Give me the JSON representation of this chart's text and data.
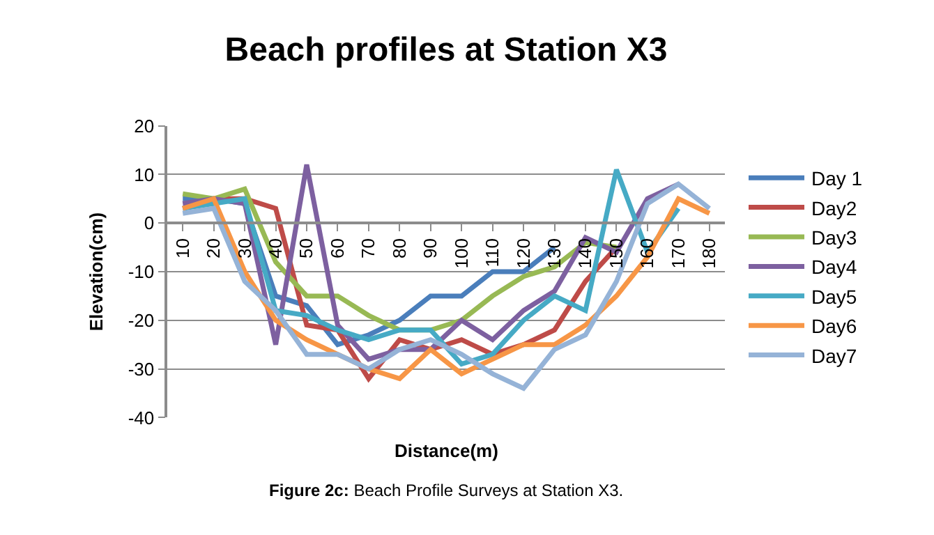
{
  "chart_data": {
    "type": "line",
    "title": "Beach profiles at Station X3",
    "xlabel": "Distance(m)",
    "ylabel": "Elevation(cm)",
    "annotations": [
      "Figure 2c: Beach Profile Surveys at Station X3."
    ],
    "categories": [
      "10",
      "20",
      "30",
      "40",
      "50",
      "60",
      "70",
      "80",
      "90",
      "100",
      "110",
      "120",
      "130",
      "140",
      "150",
      "160",
      "170",
      "180"
    ],
    "ylim": [
      -40,
      20
    ],
    "yticks": [
      -40,
      -30,
      -20,
      -10,
      0,
      10,
      20
    ],
    "grid": "y",
    "legend": "right",
    "marker": "none",
    "line_style": "solid",
    "series": [
      {
        "name": "Day 1",
        "color": "#4a7ebb",
        "values": [
          5,
          5,
          4,
          -15,
          -17,
          -25,
          -23,
          -20,
          -15,
          -15,
          -10,
          -10,
          -5,
          null,
          null,
          null,
          null,
          null
        ]
      },
      {
        "name": "Day2",
        "color": "#be4b48",
        "values": [
          3,
          5,
          5,
          3,
          -21,
          -22,
          -32,
          -24,
          -26,
          -24,
          -27,
          -25,
          -22,
          -12,
          -5,
          null,
          null,
          null
        ]
      },
      {
        "name": "Day3",
        "color": "#98b954",
        "values": [
          6,
          5,
          7,
          -8,
          -15,
          -15,
          -19,
          -22,
          -22,
          -20,
          -15,
          -11,
          -9,
          -4,
          -5,
          null,
          null,
          null
        ]
      },
      {
        "name": "Day4",
        "color": "#7d60a0",
        "values": [
          4,
          5,
          4,
          -25,
          12,
          -21,
          -28,
          -26,
          -26,
          -20,
          -24,
          -18,
          -14,
          -3,
          -6,
          5,
          8,
          null
        ]
      },
      {
        "name": "Day5",
        "color": "#46aac5",
        "values": [
          3,
          4,
          5,
          -18,
          -19,
          -22,
          -24,
          -22,
          -22,
          -29,
          -27,
          -20,
          -15,
          -18,
          11,
          -6,
          3,
          null
        ]
      },
      {
        "name": "Day6",
        "color": "#f79646",
        "values": [
          3,
          5,
          -10,
          -20,
          -24,
          -27,
          -30,
          -32,
          -26,
          -31,
          -28,
          -25,
          -25,
          -21,
          -15,
          -7,
          5,
          2
        ]
      },
      {
        "name": "Day7",
        "color": "#95b3d7",
        "values": [
          2,
          3,
          -12,
          -18,
          -27,
          -27,
          -30,
          -26,
          -24,
          -27,
          -31,
          -34,
          -26,
          -23,
          -12,
          4,
          8,
          3
        ]
      }
    ]
  }
}
